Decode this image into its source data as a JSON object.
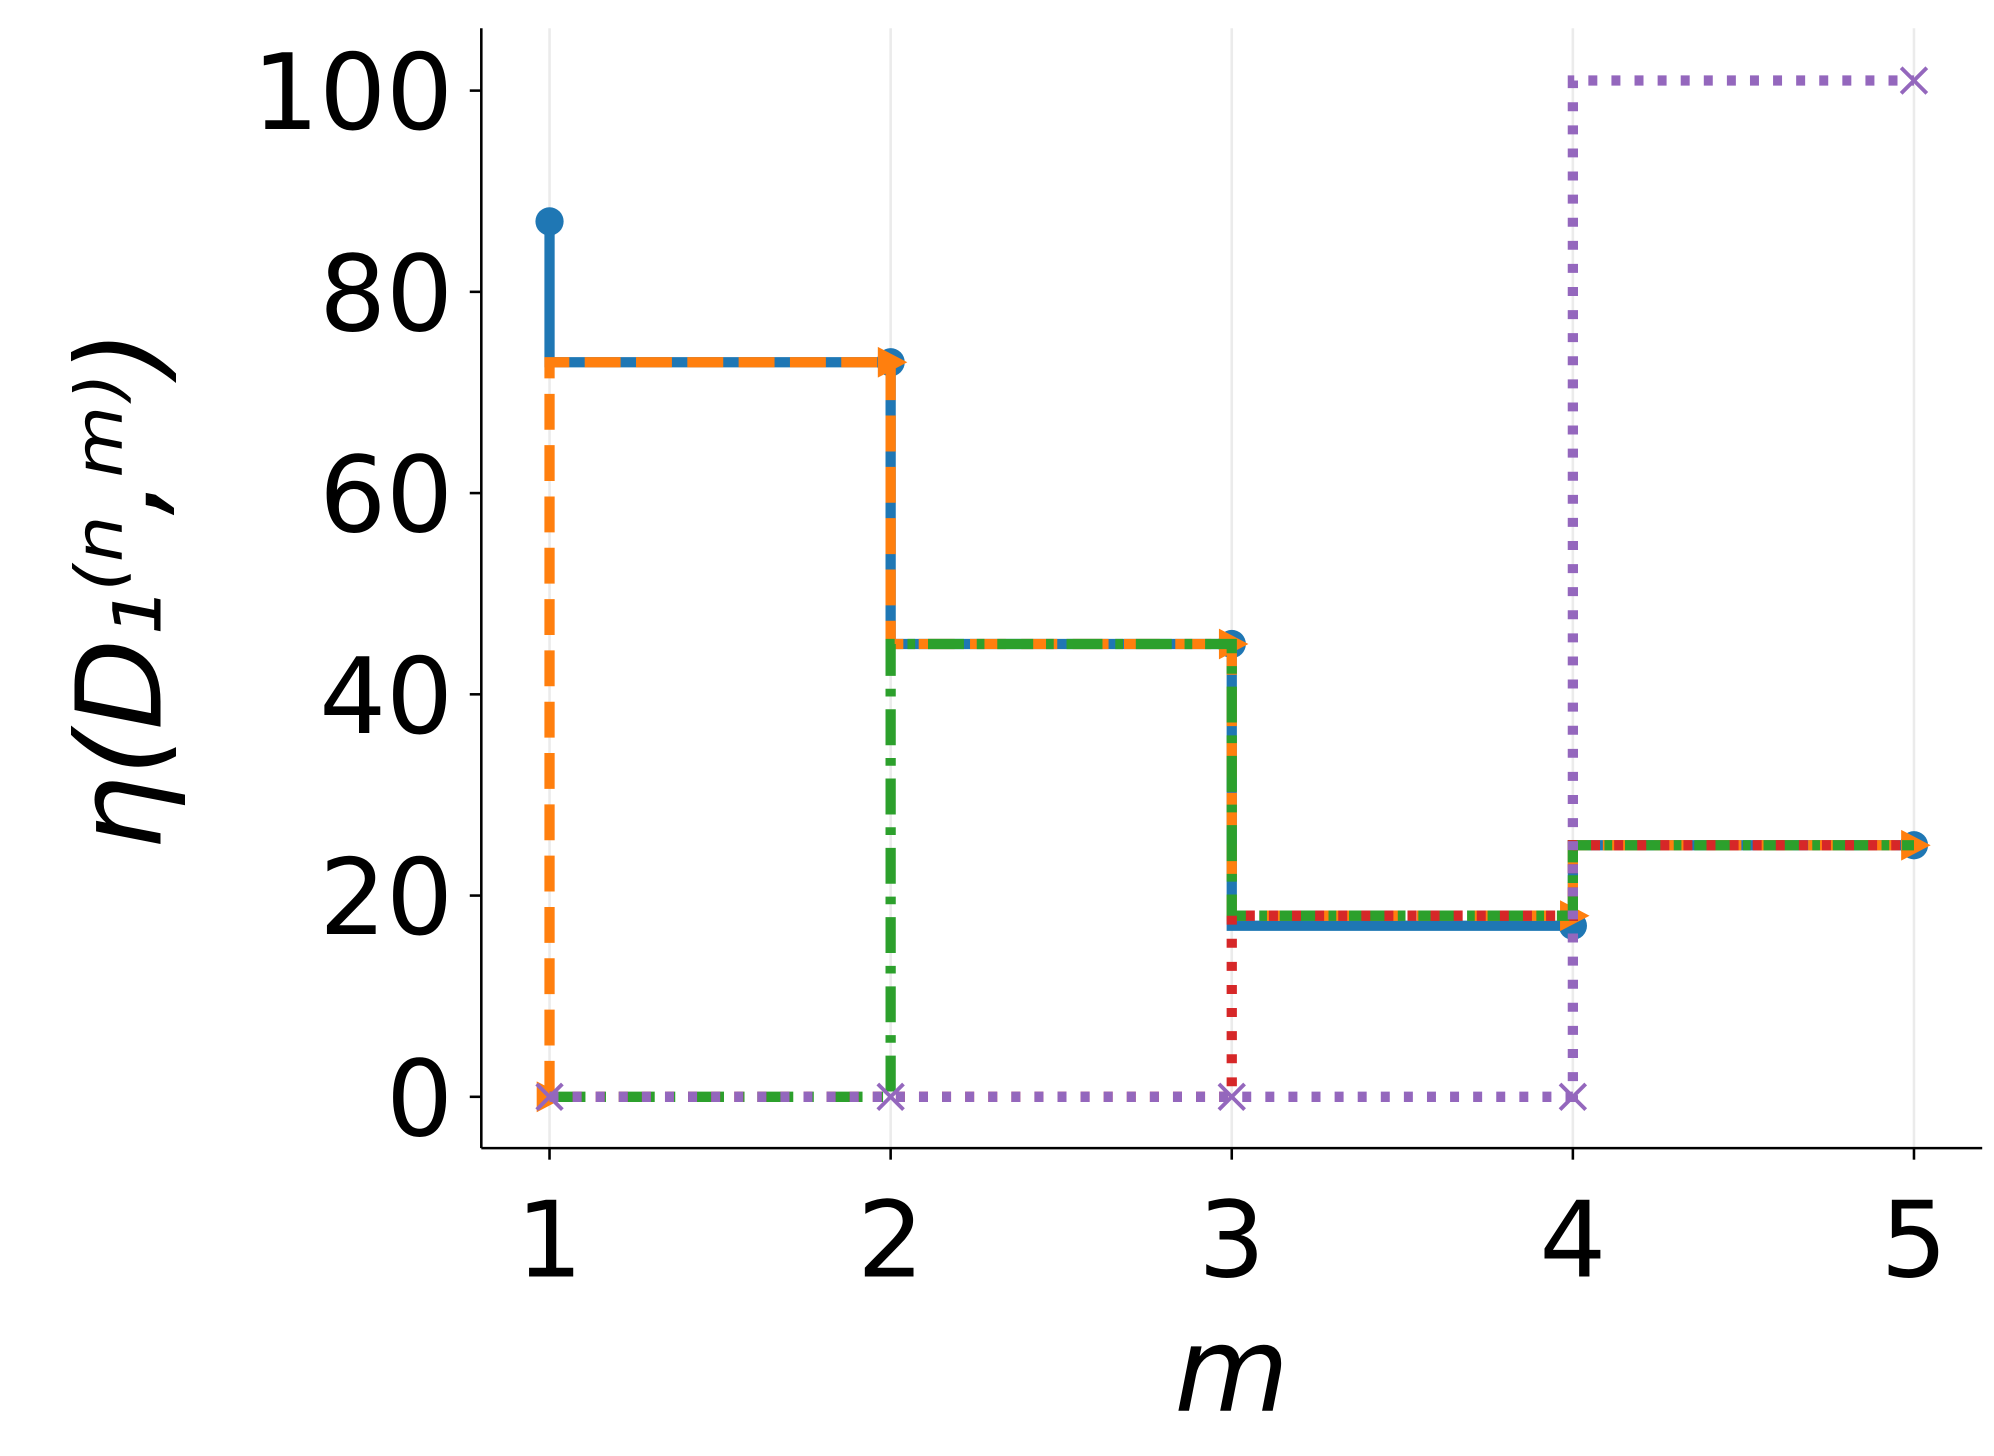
{
  "chart_data": {
    "type": "step",
    "x_label": "m",
    "y_label": "η(D₁⁽ⁿ,ᵐ⁾)",
    "x": [
      1,
      2,
      3,
      4,
      5
    ],
    "series": [
      {
        "color": "#1f77b4",
        "linestyle": "solid",
        "marker": "circle",
        "values": [
          87,
          73,
          45,
          17,
          25
        ]
      },
      {
        "color": "#ff7f0e",
        "linestyle": "dashed",
        "marker": "triangle",
        "values": [
          0,
          73,
          45,
          18,
          25
        ]
      },
      {
        "color": "#2ca02c",
        "linestyle": "dashdot",
        "marker": "none",
        "values": [
          0,
          0,
          45,
          18,
          25
        ]
      },
      {
        "color": "#d62728",
        "linestyle": "dotted",
        "marker": "none",
        "values": [
          0,
          0,
          0,
          18,
          25
        ]
      },
      {
        "color": "#9467bd",
        "linestyle": "dotted",
        "marker": "cross",
        "values": [
          0,
          0,
          0,
          0,
          101
        ]
      }
    ],
    "xlim": [
      0.8,
      5.2
    ],
    "ylim": [
      -5.1,
      106.2
    ],
    "xticks": [
      1,
      2,
      3,
      4,
      5
    ],
    "yticks": [
      0,
      20,
      40,
      60,
      80,
      100
    ],
    "grid": "x"
  }
}
